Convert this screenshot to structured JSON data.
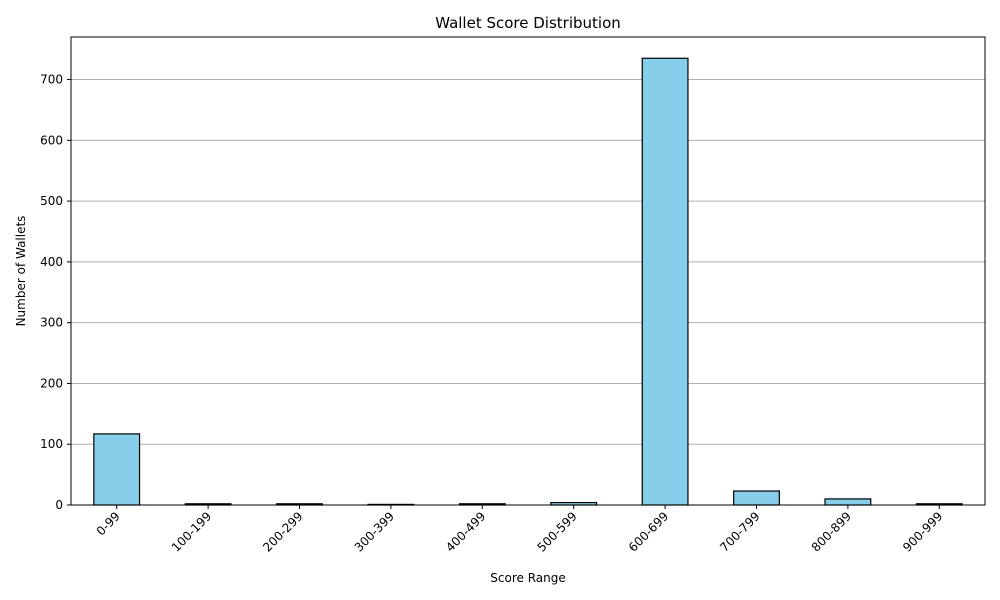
{
  "chart_data": {
    "type": "bar",
    "title": "Wallet Score Distribution",
    "xlabel": "Score Range",
    "ylabel": "Number of Wallets",
    "categories": [
      "0-99",
      "100-199",
      "200-299",
      "300-399",
      "400-499",
      "500-599",
      "600-699",
      "700-799",
      "800-899",
      "900-999"
    ],
    "values": [
      117,
      2,
      2,
      1,
      2,
      4,
      735,
      23,
      10,
      2
    ],
    "ylim": [
      0,
      770
    ],
    "yticks": [
      0,
      100,
      200,
      300,
      400,
      500,
      600,
      700
    ],
    "grid": "y",
    "legend": "none",
    "colors": {
      "bar_fill": "#87ceeb",
      "bar_edge": "#000000",
      "grid": "#b0b0b0"
    }
  }
}
